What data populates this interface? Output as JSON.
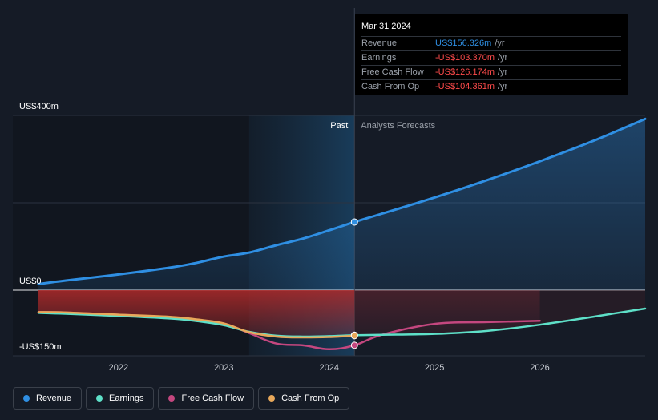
{
  "colors": {
    "background": "#151b26",
    "revenue": "#2f8fe3",
    "earnings": "#5ee0c8",
    "free_cash_flow": "#c4477f",
    "cash_from_op": "#e8a85a",
    "negative": "#ff4b4b"
  },
  "tooltip": {
    "date": "Mar 31 2024",
    "rows": [
      {
        "name": "Revenue",
        "value": "US$156.326m",
        "unit": "/yr",
        "tone": "pos"
      },
      {
        "name": "Earnings",
        "value": "-US$103.370m",
        "unit": "/yr",
        "tone": "neg"
      },
      {
        "name": "Free Cash Flow",
        "value": "-US$126.174m",
        "unit": "/yr",
        "tone": "neg"
      },
      {
        "name": "Cash From Op",
        "value": "-US$104.361m",
        "unit": "/yr",
        "tone": "neg"
      }
    ]
  },
  "chart_data": {
    "type": "line",
    "title": "",
    "xlabel": "",
    "ylabel": "",
    "ylim": [
      -150,
      400
    ],
    "xlim": [
      2021.24,
      2027.0
    ],
    "y_tick_labels": [
      {
        "value": 400,
        "label": "US$400m"
      },
      {
        "value": 0,
        "label": "US$0"
      },
      {
        "value": -150,
        "label": "-US$150m"
      }
    ],
    "x_ticks": [
      2022,
      2023,
      2024,
      2025,
      2026
    ],
    "gridlines": [
      400,
      200,
      0,
      -150
    ],
    "past_end": 2024.24,
    "past_highlight_start": 2023.24,
    "region_labels": {
      "past": "Past",
      "forecast": "Analysts Forecasts"
    },
    "highlight_date": 2024.24,
    "series": [
      {
        "name": "Revenue",
        "key": "revenue",
        "x": [
          2021.24,
          2021.5,
          2022.0,
          2022.5,
          2022.75,
          2023.0,
          2023.24,
          2023.5,
          2023.75,
          2024.0,
          2024.24,
          2024.5,
          2025.0,
          2025.5,
          2026.0,
          2026.5,
          2027.0
        ],
        "y": [
          14,
          22,
          36,
          52,
          63,
          77,
          86,
          103,
          118,
          137,
          156,
          175,
          212,
          252,
          295,
          341,
          392
        ]
      },
      {
        "name": "Earnings",
        "key": "earnings",
        "x": [
          2021.24,
          2021.5,
          2022.0,
          2022.5,
          2022.75,
          2023.0,
          2023.24,
          2023.5,
          2023.75,
          2024.0,
          2024.24,
          2024.5,
          2025.0,
          2025.5,
          2026.0,
          2026.5,
          2027.0
        ],
        "y": [
          -52,
          -54,
          -59,
          -65,
          -71,
          -80,
          -95,
          -104,
          -106,
          -105,
          -103,
          -102,
          -100,
          -93,
          -79,
          -61,
          -42
        ]
      },
      {
        "name": "Free Cash Flow",
        "key": "free_cash_flow",
        "x": [
          2021.24,
          2021.5,
          2022.0,
          2022.5,
          2022.75,
          2023.0,
          2023.24,
          2023.5,
          2023.75,
          2024.0,
          2024.24,
          2024.5,
          2025.0,
          2025.5,
          2026.0
        ],
        "y": [
          -50,
          -51,
          -56,
          -62,
          -68,
          -76,
          -98,
          -122,
          -126,
          -135,
          -126,
          -102,
          -77,
          -73,
          -70
        ]
      },
      {
        "name": "Cash From Op",
        "key": "cash_from_op",
        "x": [
          2021.24,
          2021.5,
          2022.0,
          2022.5,
          2022.75,
          2023.0,
          2023.24,
          2023.5,
          2023.75,
          2024.0,
          2024.24
        ],
        "y": [
          -50,
          -51,
          -56,
          -61,
          -67,
          -76,
          -96,
          -106,
          -108,
          -107,
          -104
        ]
      }
    ],
    "legend": [
      {
        "name": "Revenue",
        "key": "revenue"
      },
      {
        "name": "Earnings",
        "key": "earnings"
      },
      {
        "name": "Free Cash Flow",
        "key": "free_cash_flow"
      },
      {
        "name": "Cash From Op",
        "key": "cash_from_op"
      }
    ],
    "legend_position": "bottom-left"
  }
}
